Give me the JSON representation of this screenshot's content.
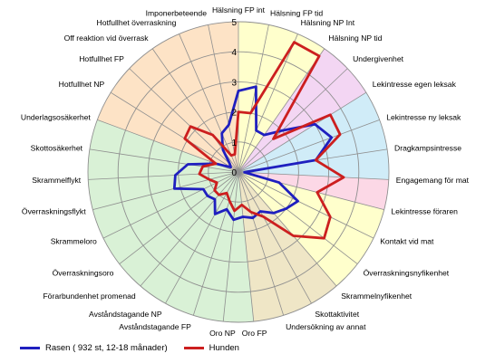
{
  "chart_data": {
    "type": "radar",
    "title": "",
    "rmax": 5,
    "ticks": [
      "0",
      "1",
      "2",
      "3",
      "4",
      "5"
    ],
    "categories": [
      "Hälsning FP int",
      "Hälsning FP tid",
      "Hälsning NP Int",
      "Hälsning NP tid",
      "Undergivenhet",
      "Lekintresse egen leksak",
      "Lekintresse ny leksak",
      "Dragkampsintresse",
      "Engagemang för mat",
      "Lekintresse föraren",
      "Kontakt vid mat",
      "Överraskningsnyfikenhet",
      "Skrammelnyfikenhet",
      "Skottaktivitet",
      "Undersökning av annat",
      "Oro FP",
      "Oro NP",
      "Avståndstagande FP",
      "Avståndstagande NP",
      "Förarbundenhet promenad",
      "Överraskningsoro",
      "Skrammeloro",
      "Överraskningsflykt",
      "Skrammelflykt",
      "Skottosäkerhet",
      "Underlagsosäkerhet",
      "Hotfullhet NP",
      "Hotfullhet FP",
      "Off reaktion vid överrask",
      "Hotfullhet överraskning",
      "Imponerbeteende"
    ],
    "series": [
      {
        "name": "Rasen ( 932 st, 12-18 månader)",
        "color": "#1f1fbf",
        "values": [
          2.7,
          2.9,
          1.5,
          1.5,
          2.0,
          3.0,
          3.3,
          2.6,
          0.2,
          1.4,
          2.2,
          2.0,
          1.8,
          1.5,
          1.6,
          1.5,
          1.6,
          1.3,
          1.6,
          1.2,
          1.3,
          1.3,
          2.2,
          2.1,
          1.7,
          0.8,
          0.3,
          0.4,
          0.9,
          1.4,
          1.6
        ]
      },
      {
        "name": "Hunden",
        "color": "#cc1f1f",
        "values": [
          2.0,
          2.0,
          4.7,
          4.7,
          1.6,
          3.6,
          3.6,
          2.6,
          3.5,
          2.7,
          3.4,
          3.6,
          2.8,
          1.7,
          1.4,
          1.1,
          1.3,
          1.0,
          0.8,
          1.0,
          1.0,
          0.8,
          1.0,
          1.3,
          1.2,
          0.8,
          2.1,
          2.2,
          1.5,
          0.6,
          0.6
        ]
      }
    ],
    "sectors": [
      {
        "from": 0,
        "to": 3,
        "color": "#ffffcc"
      },
      {
        "from": 3,
        "to": 5,
        "color": "#f3d6f3"
      },
      {
        "from": 5,
        "to": 8,
        "color": "#d0ecf8"
      },
      {
        "from": 8,
        "to": 9,
        "color": "#fcd8e6"
      },
      {
        "from": 9,
        "to": 12,
        "color": "#ffffcc"
      },
      {
        "from": 12,
        "to": 15,
        "color": "#efe6c6"
      },
      {
        "from": 15,
        "to": 25,
        "color": "#d9f1d6"
      },
      {
        "from": 25,
        "to": 31,
        "color": "#fde3c6"
      }
    ],
    "legend_position": "bottom-left",
    "grid": true
  }
}
